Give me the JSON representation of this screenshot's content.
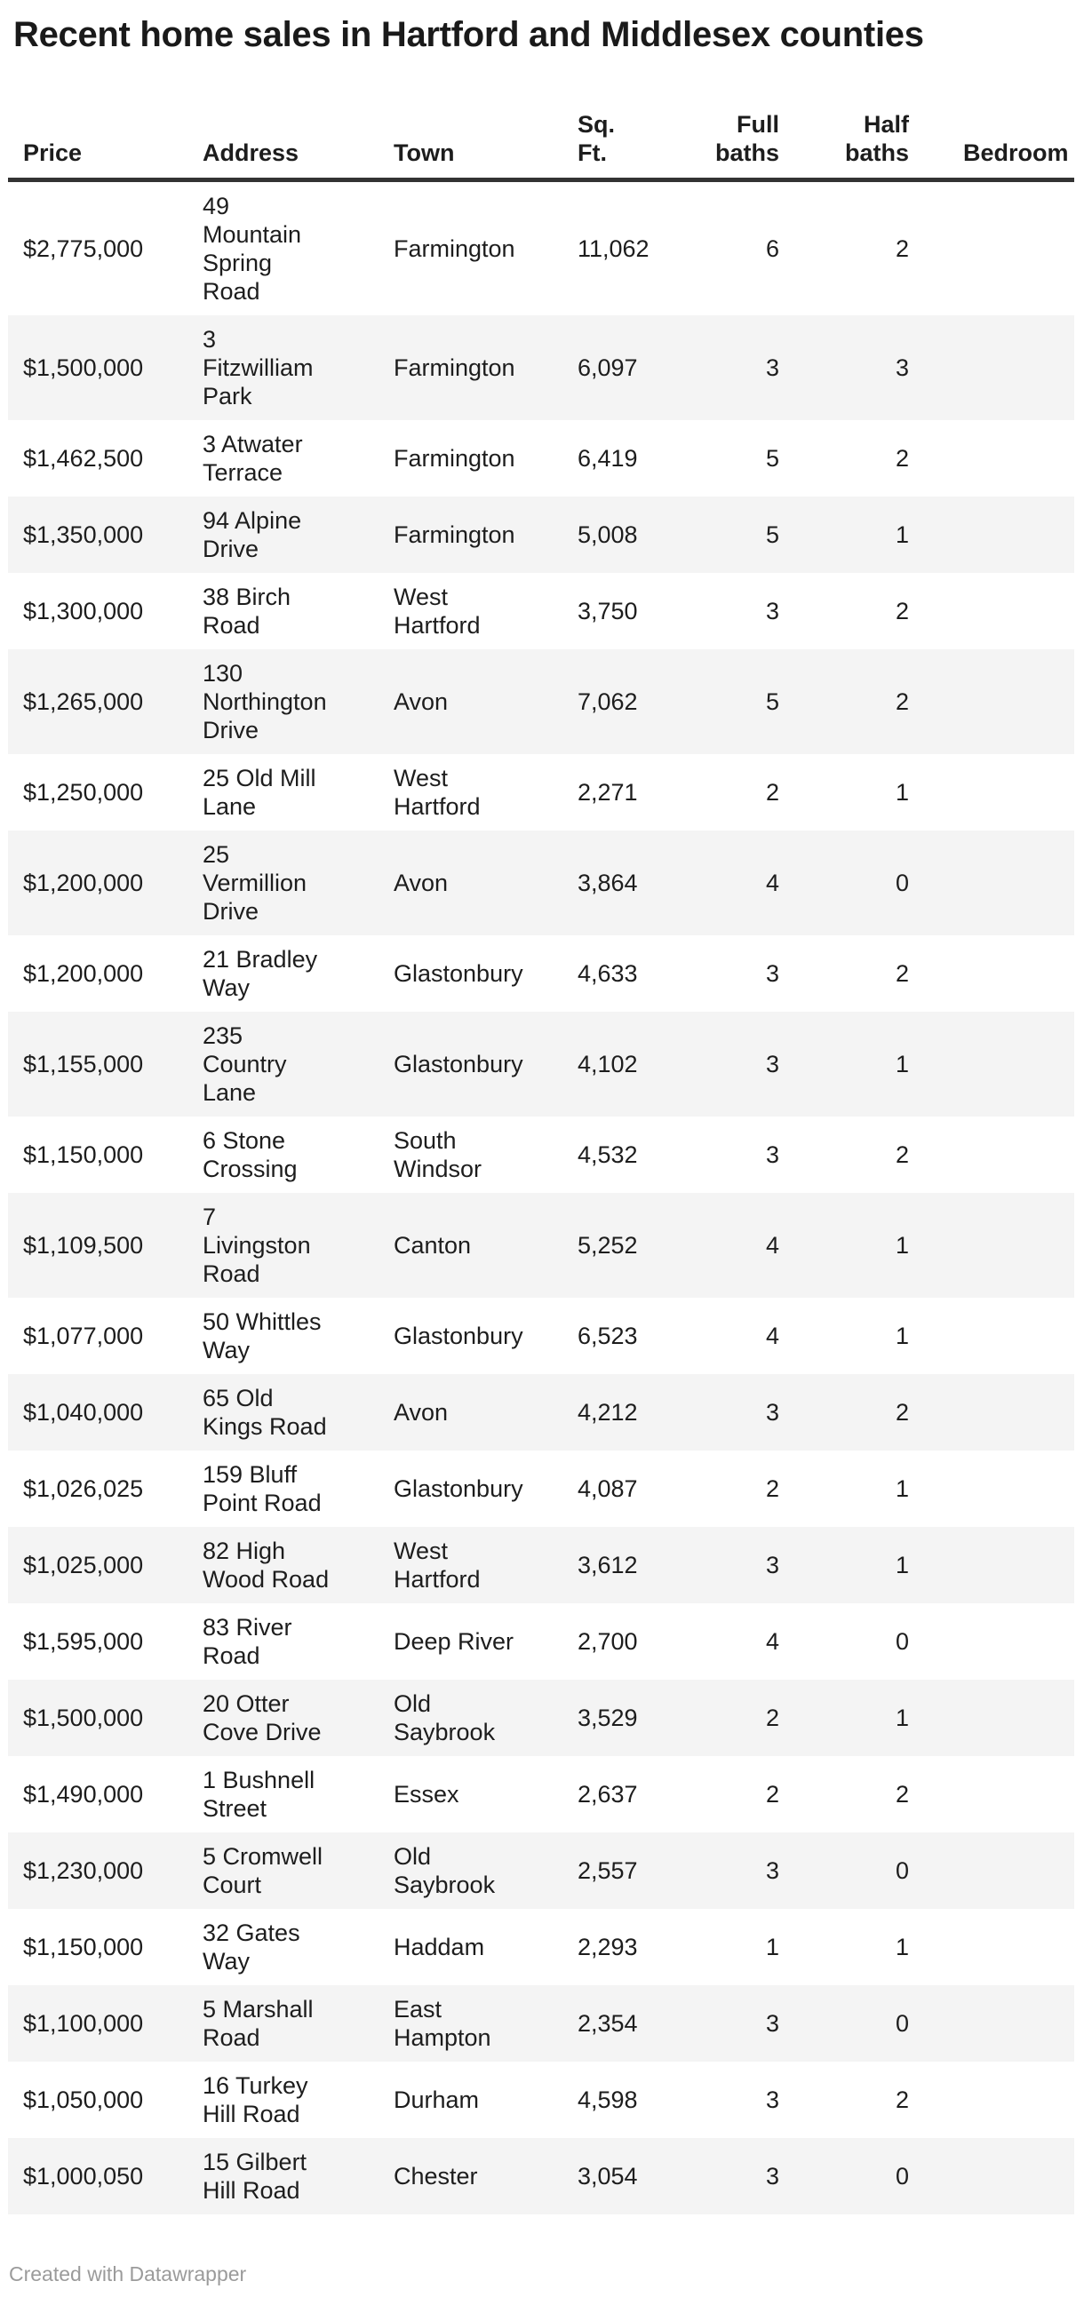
{
  "page": {
    "title": "Recent home sales in Hartford and Middlesex counties",
    "attribution": "Created with Datawrapper"
  },
  "colors": {
    "text": "#1d1d1d",
    "title": "#1a1a1a",
    "stripe": "#f4f4f4",
    "header_rule": "#333333",
    "attribution": "#9b9b9b"
  },
  "display": {
    "header_lines": [
      "Price",
      "Address",
      "Town",
      "Sq.\nFt.",
      "Full\nbaths",
      "Half\nbaths",
      "Bedroom"
    ],
    "rows": [
      [
        "$2,775,000",
        "49\nMountain\nSpring\nRoad",
        "Farmington",
        "11,062",
        "6",
        "2",
        ""
      ],
      [
        "$1,500,000",
        "3\nFitzwilliam\nPark",
        "Farmington",
        "6,097",
        "3",
        "3",
        ""
      ],
      [
        "$1,462,500",
        "3 Atwater\nTerrace",
        "Farmington",
        "6,419",
        "5",
        "2",
        ""
      ],
      [
        "$1,350,000",
        "94 Alpine\nDrive",
        "Farmington",
        "5,008",
        "5",
        "1",
        ""
      ],
      [
        "$1,300,000",
        "38 Birch\nRoad",
        "West\nHartford",
        "3,750",
        "3",
        "2",
        ""
      ],
      [
        "$1,265,000",
        "130\nNorthington\nDrive",
        "Avon",
        "7,062",
        "5",
        "2",
        ""
      ],
      [
        "$1,250,000",
        "25 Old Mill\nLane",
        "West\nHartford",
        "2,271",
        "2",
        "1",
        ""
      ],
      [
        "$1,200,000",
        "25\nVermillion\nDrive",
        "Avon",
        "3,864",
        "4",
        "0",
        ""
      ],
      [
        "$1,200,000",
        "21 Bradley\nWay",
        "Glastonbury",
        "4,633",
        "3",
        "2",
        ""
      ],
      [
        "$1,155,000",
        "235\nCountry\nLane",
        "Glastonbury",
        "4,102",
        "3",
        "1",
        ""
      ],
      [
        "$1,150,000",
        "6 Stone\nCrossing",
        "South\nWindsor",
        "4,532",
        "3",
        "2",
        ""
      ],
      [
        "$1,109,500",
        "7\nLivingston\nRoad",
        "Canton",
        "5,252",
        "4",
        "1",
        ""
      ],
      [
        "$1,077,000",
        "50 Whittles\nWay",
        "Glastonbury",
        "6,523",
        "4",
        "1",
        ""
      ],
      [
        "$1,040,000",
        "65 Old\nKings Road",
        "Avon",
        "4,212",
        "3",
        "2",
        ""
      ],
      [
        "$1,026,025",
        "159 Bluff\nPoint Road",
        "Glastonbury",
        "4,087",
        "2",
        "1",
        ""
      ],
      [
        "$1,025,000",
        "82 High\nWood Road",
        "West\nHartford",
        "3,612",
        "3",
        "1",
        ""
      ],
      [
        "$1,595,000",
        "83 River\nRoad",
        "Deep River",
        "2,700",
        "4",
        "0",
        ""
      ],
      [
        "$1,500,000",
        "20 Otter\nCove Drive",
        "Old\nSaybrook",
        "3,529",
        "2",
        "1",
        ""
      ],
      [
        "$1,490,000",
        "1 Bushnell\nStreet",
        "Essex",
        "2,637",
        "2",
        "2",
        ""
      ],
      [
        "$1,230,000",
        "5 Cromwell\nCourt",
        "Old\nSaybrook",
        "2,557",
        "3",
        "0",
        ""
      ],
      [
        "$1,150,000",
        "32 Gates\nWay",
        "Haddam",
        "2,293",
        "1",
        "1",
        ""
      ],
      [
        "$1,100,000",
        "5 Marshall\nRoad",
        "East\nHampton",
        "2,354",
        "3",
        "0",
        ""
      ],
      [
        "$1,050,000",
        "16 Turkey\nHill Road",
        "Durham",
        "4,598",
        "3",
        "2",
        ""
      ],
      [
        "$1,000,050",
        "15 Gilbert\nHill Road",
        "Chester",
        "3,054",
        "3",
        "0",
        ""
      ]
    ]
  },
  "chart_data": {
    "type": "table",
    "title": "Recent home sales in Hartford and Middlesex counties",
    "columns": [
      "Price",
      "Address",
      "Town",
      "Sq. Ft.",
      "Full baths",
      "Half baths",
      "Bedroom"
    ],
    "rows": [
      {
        "price": "$2,775,000",
        "address": "49 Mountain Spring Road",
        "town": "Farmington",
        "sqft": "11,062",
        "full_baths": 6,
        "half_baths": 2,
        "bedroom": ""
      },
      {
        "price": "$1,500,000",
        "address": "3 Fitzwilliam Park",
        "town": "Farmington",
        "sqft": "6,097",
        "full_baths": 3,
        "half_baths": 3,
        "bedroom": ""
      },
      {
        "price": "$1,462,500",
        "address": "3 Atwater Terrace",
        "town": "Farmington",
        "sqft": "6,419",
        "full_baths": 5,
        "half_baths": 2,
        "bedroom": ""
      },
      {
        "price": "$1,350,000",
        "address": "94 Alpine Drive",
        "town": "Farmington",
        "sqft": "5,008",
        "full_baths": 5,
        "half_baths": 1,
        "bedroom": ""
      },
      {
        "price": "$1,300,000",
        "address": "38 Birch Road",
        "town": "West Hartford",
        "sqft": "3,750",
        "full_baths": 3,
        "half_baths": 2,
        "bedroom": ""
      },
      {
        "price": "$1,265,000",
        "address": "130 Northington Drive",
        "town": "Avon",
        "sqft": "7,062",
        "full_baths": 5,
        "half_baths": 2,
        "bedroom": ""
      },
      {
        "price": "$1,250,000",
        "address": "25 Old Mill Lane",
        "town": "West Hartford",
        "sqft": "2,271",
        "full_baths": 2,
        "half_baths": 1,
        "bedroom": ""
      },
      {
        "price": "$1,200,000",
        "address": "25 Vermillion Drive",
        "town": "Avon",
        "sqft": "3,864",
        "full_baths": 4,
        "half_baths": 0,
        "bedroom": ""
      },
      {
        "price": "$1,200,000",
        "address": "21 Bradley Way",
        "town": "Glastonbury",
        "sqft": "4,633",
        "full_baths": 3,
        "half_baths": 2,
        "bedroom": ""
      },
      {
        "price": "$1,155,000",
        "address": "235 Country Lane",
        "town": "Glastonbury",
        "sqft": "4,102",
        "full_baths": 3,
        "half_baths": 1,
        "bedroom": ""
      },
      {
        "price": "$1,150,000",
        "address": "6 Stone Crossing",
        "town": "South Windsor",
        "sqft": "4,532",
        "full_baths": 3,
        "half_baths": 2,
        "bedroom": ""
      },
      {
        "price": "$1,109,500",
        "address": "7 Livingston Road",
        "town": "Canton",
        "sqft": "5,252",
        "full_baths": 4,
        "half_baths": 1,
        "bedroom": ""
      },
      {
        "price": "$1,077,000",
        "address": "50 Whittles Way",
        "town": "Glastonbury",
        "sqft": "6,523",
        "full_baths": 4,
        "half_baths": 1,
        "bedroom": ""
      },
      {
        "price": "$1,040,000",
        "address": "65 Old Kings Road",
        "town": "Avon",
        "sqft": "4,212",
        "full_baths": 3,
        "half_baths": 2,
        "bedroom": ""
      },
      {
        "price": "$1,026,025",
        "address": "159 Bluff Point Road",
        "town": "Glastonbury",
        "sqft": "4,087",
        "full_baths": 2,
        "half_baths": 1,
        "bedroom": ""
      },
      {
        "price": "$1,025,000",
        "address": "82 High Wood Road",
        "town": "West Hartford",
        "sqft": "3,612",
        "full_baths": 3,
        "half_baths": 1,
        "bedroom": ""
      },
      {
        "price": "$1,595,000",
        "address": "83 River Road",
        "town": "Deep River",
        "sqft": "2,700",
        "full_baths": 4,
        "half_baths": 0,
        "bedroom": ""
      },
      {
        "price": "$1,500,000",
        "address": "20 Otter Cove Drive",
        "town": "Old Saybrook",
        "sqft": "3,529",
        "full_baths": 2,
        "half_baths": 1,
        "bedroom": ""
      },
      {
        "price": "$1,490,000",
        "address": "1 Bushnell Street",
        "town": "Essex",
        "sqft": "2,637",
        "full_baths": 2,
        "half_baths": 2,
        "bedroom": ""
      },
      {
        "price": "$1,230,000",
        "address": "5 Cromwell Court",
        "town": "Old Saybrook",
        "sqft": "2,557",
        "full_baths": 3,
        "half_baths": 0,
        "bedroom": ""
      },
      {
        "price": "$1,150,000",
        "address": "32 Gates Way",
        "town": "Haddam",
        "sqft": "2,293",
        "full_baths": 1,
        "half_baths": 1,
        "bedroom": ""
      },
      {
        "price": "$1,100,000",
        "address": "5 Marshall Road",
        "town": "East Hampton",
        "sqft": "2,354",
        "full_baths": 3,
        "half_baths": 0,
        "bedroom": ""
      },
      {
        "price": "$1,050,000",
        "address": "16 Turkey Hill Road",
        "town": "Durham",
        "sqft": "4,598",
        "full_baths": 3,
        "half_baths": 2,
        "bedroom": ""
      },
      {
        "price": "$1,000,050",
        "address": "15 Gilbert Hill Road",
        "town": "Chester",
        "sqft": "3,054",
        "full_baths": 3,
        "half_baths": 0,
        "bedroom": ""
      }
    ]
  }
}
